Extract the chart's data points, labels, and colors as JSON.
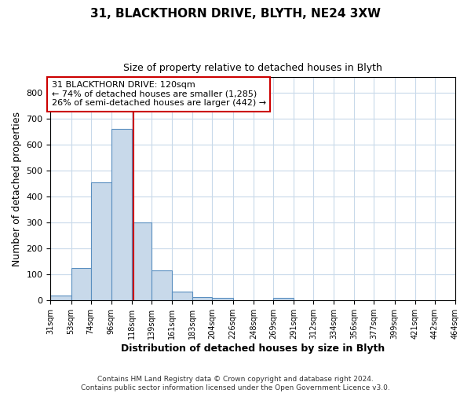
{
  "title1": "31, BLACKTHORN DRIVE, BLYTH, NE24 3XW",
  "title2": "Size of property relative to detached houses in Blyth",
  "xlabel": "Distribution of detached houses by size in Blyth",
  "ylabel": "Number of detached properties",
  "bin_edges": [
    31,
    53,
    74,
    96,
    118,
    139,
    161,
    183,
    204,
    226,
    248,
    269,
    291,
    312,
    334,
    356,
    377,
    399,
    421,
    442,
    464
  ],
  "bar_heights": [
    18,
    125,
    456,
    660,
    300,
    117,
    35,
    14,
    10,
    0,
    0,
    10,
    0,
    0,
    0,
    0,
    0,
    0,
    0,
    0
  ],
  "bar_color": "#c8d9ea",
  "bar_edgecolor": "#5a8fc0",
  "property_line_x": 120,
  "property_line_color": "#cc0000",
  "annotation_line1": "31 BLACKTHORN DRIVE: 120sqm",
  "annotation_line2": "← 74% of detached houses are smaller (1,285)",
  "annotation_line3": "26% of semi-detached houses are larger (442) →",
  "annotation_box_color": "#cc0000",
  "ylim": [
    0,
    860
  ],
  "yticks": [
    0,
    100,
    200,
    300,
    400,
    500,
    600,
    700,
    800
  ],
  "xtick_labels": [
    "31sqm",
    "53sqm",
    "74sqm",
    "96sqm",
    "118sqm",
    "139sqm",
    "161sqm",
    "183sqm",
    "204sqm",
    "226sqm",
    "248sqm",
    "269sqm",
    "291sqm",
    "312sqm",
    "334sqm",
    "356sqm",
    "377sqm",
    "399sqm",
    "421sqm",
    "442sqm",
    "464sqm"
  ],
  "footer_line1": "Contains HM Land Registry data © Crown copyright and database right 2024.",
  "footer_line2": "Contains public sector information licensed under the Open Government Licence v3.0.",
  "background_color": "#ffffff",
  "grid_color": "#c8d9ea",
  "fig_width": 6.0,
  "fig_height": 5.0
}
